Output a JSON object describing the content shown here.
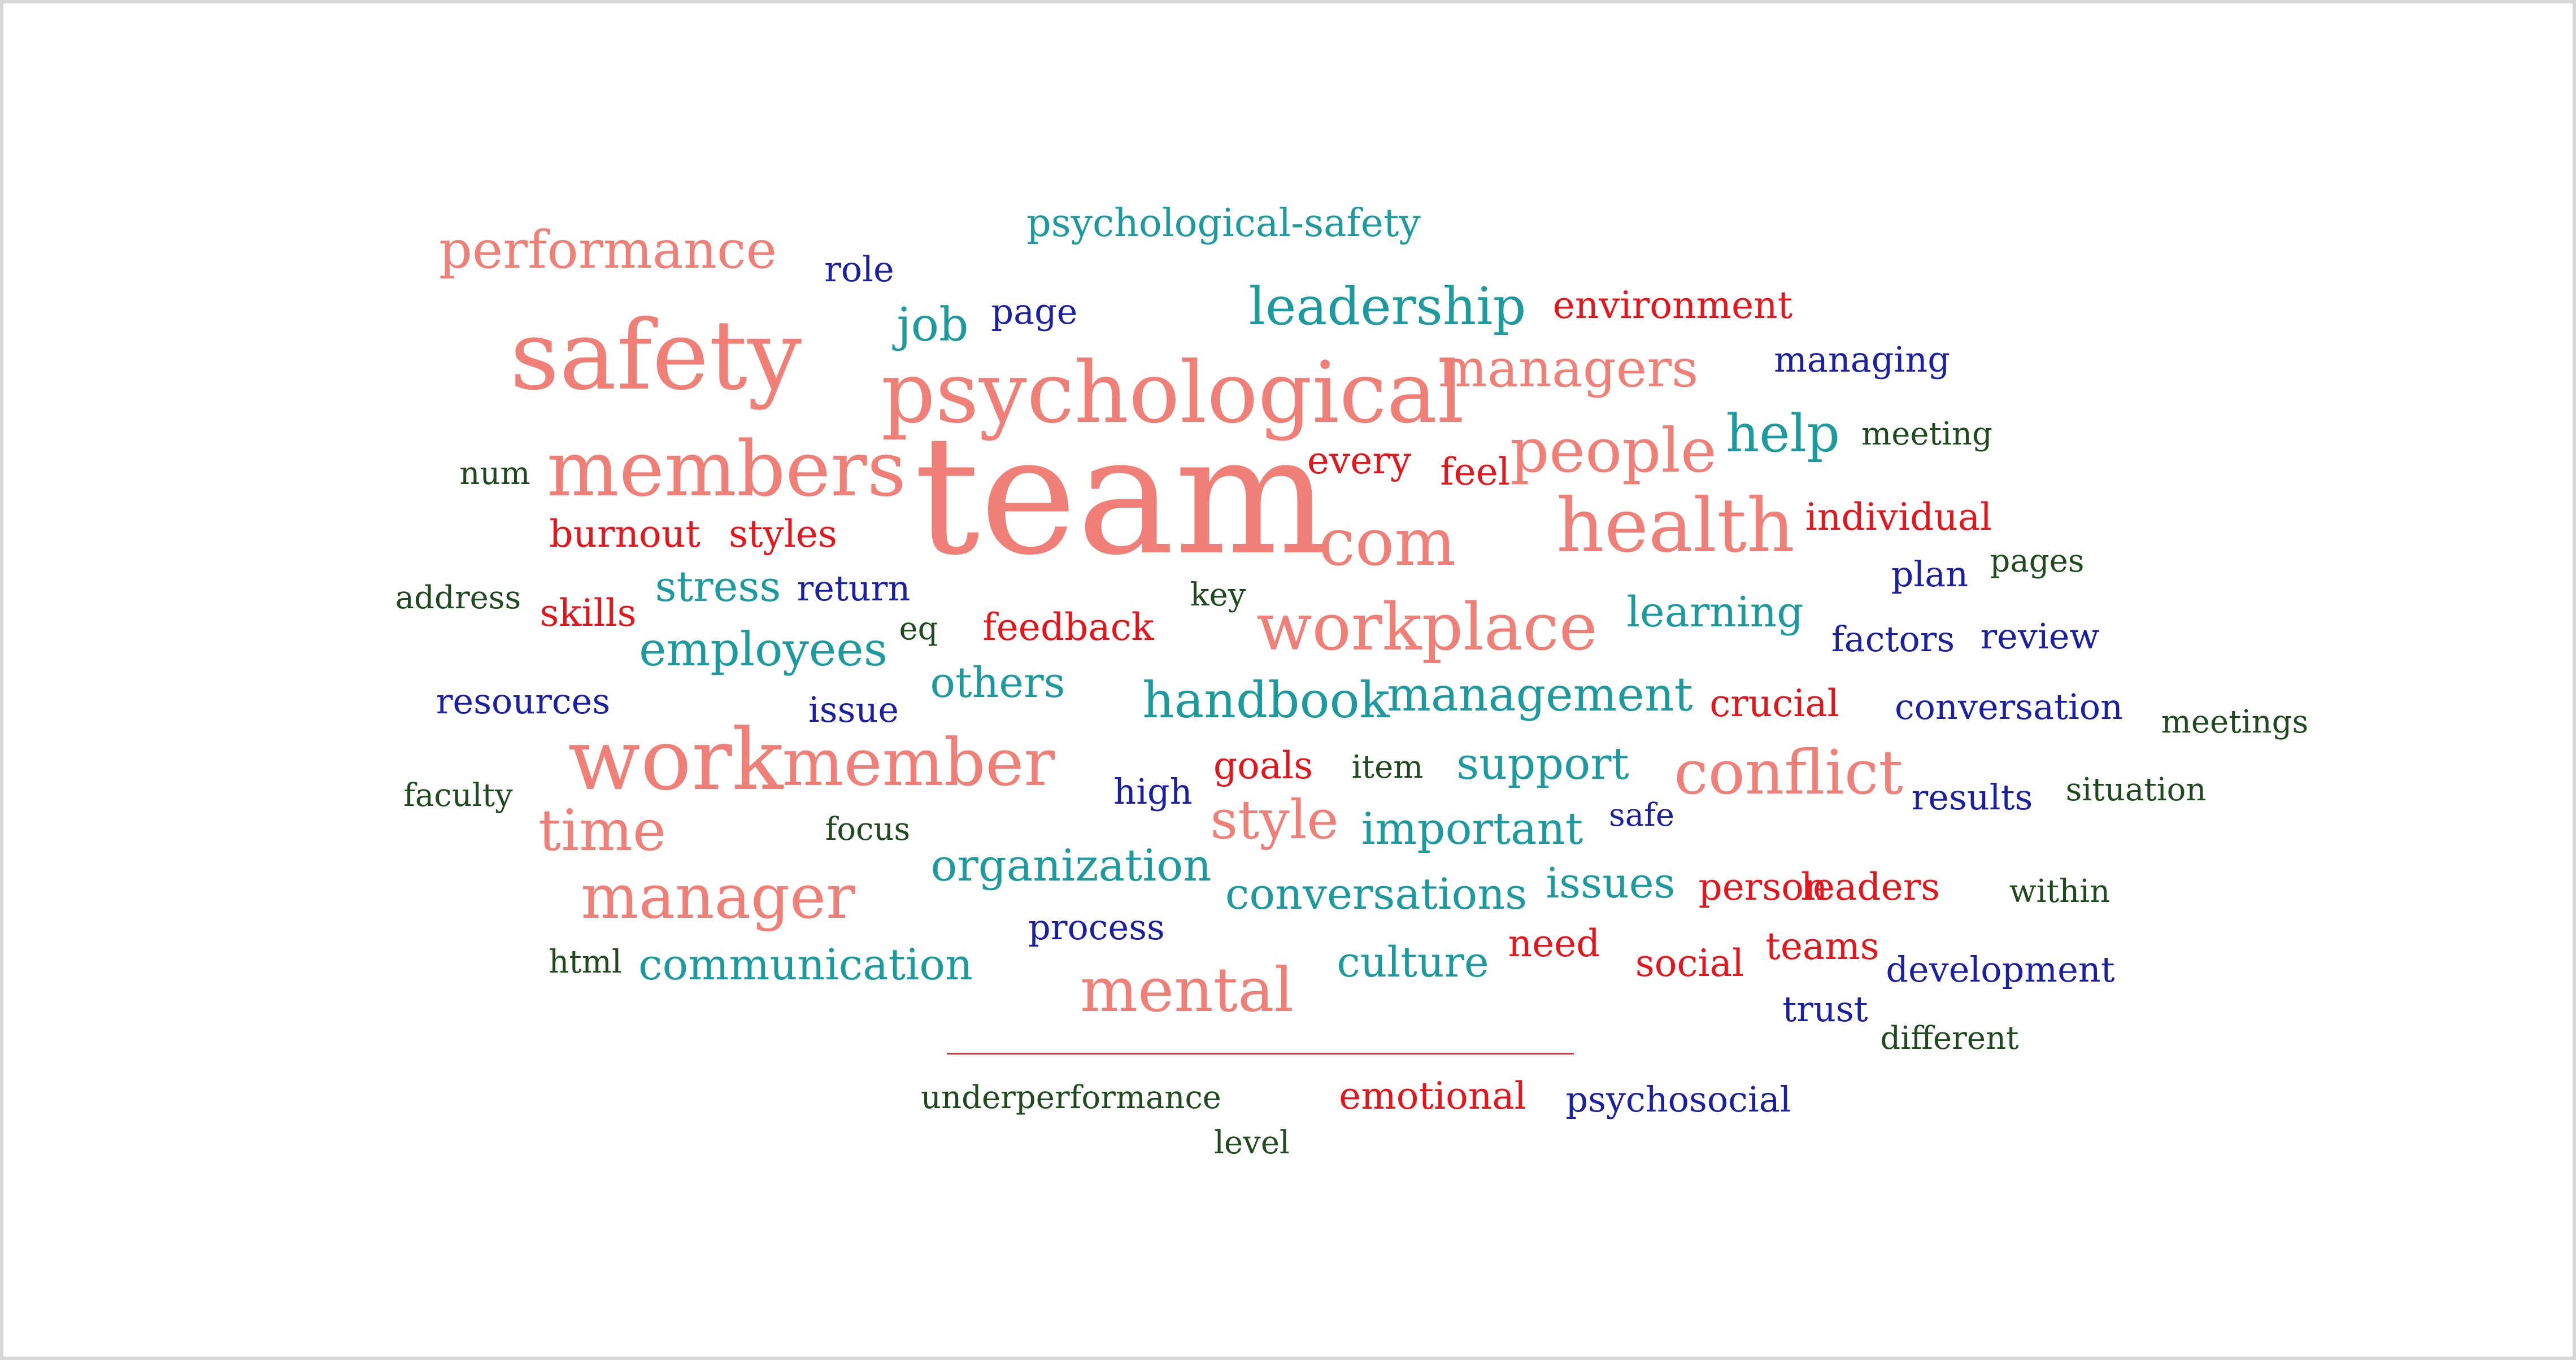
{
  "palette": {
    "salmon": "#f08077",
    "red": "#e8141c",
    "teal": "#1b9aa0",
    "navy": "#1a1fa5",
    "darkgreen": "#1e4a1e"
  },
  "words": [
    {
      "text": "team",
      "color": "salmon",
      "weight": 100
    },
    {
      "text": "psychological",
      "color": "salmon",
      "weight": 70
    },
    {
      "text": "safety",
      "color": "salmon",
      "weight": 70
    },
    {
      "text": "members",
      "color": "salmon",
      "weight": 60
    },
    {
      "text": "health",
      "color": "salmon",
      "weight": 56
    },
    {
      "text": "workplace",
      "color": "salmon",
      "weight": 52
    },
    {
      "text": "work",
      "color": "salmon",
      "weight": 60
    },
    {
      "text": "member",
      "color": "salmon",
      "weight": 48
    },
    {
      "text": "com",
      "color": "salmon",
      "weight": 48
    },
    {
      "text": "people",
      "color": "salmon",
      "weight": 44
    },
    {
      "text": "conflict",
      "color": "salmon",
      "weight": 44
    },
    {
      "text": "manager",
      "color": "salmon",
      "weight": 44
    },
    {
      "text": "mental",
      "color": "salmon",
      "weight": 44
    },
    {
      "text": "time",
      "color": "salmon",
      "weight": 40
    },
    {
      "text": "style",
      "color": "salmon",
      "weight": 38
    },
    {
      "text": "performance",
      "color": "salmon",
      "weight": 36
    },
    {
      "text": "managers",
      "color": "salmon",
      "weight": 36
    },
    {
      "text": "leadership",
      "color": "teal",
      "weight": 36
    },
    {
      "text": "help",
      "color": "teal",
      "weight": 36
    },
    {
      "text": "handbook",
      "color": "teal",
      "weight": 34
    },
    {
      "text": "management",
      "color": "teal",
      "weight": 32
    },
    {
      "text": "employees",
      "color": "teal",
      "weight": 32
    },
    {
      "text": "job",
      "color": "teal",
      "weight": 32
    },
    {
      "text": "organization",
      "color": "teal",
      "weight": 30
    },
    {
      "text": "support",
      "color": "teal",
      "weight": 30
    },
    {
      "text": "important",
      "color": "teal",
      "weight": 30
    },
    {
      "text": "conversations",
      "color": "teal",
      "weight": 30
    },
    {
      "text": "communication",
      "color": "teal",
      "weight": 30
    },
    {
      "text": "culture",
      "color": "teal",
      "weight": 28
    },
    {
      "text": "learning",
      "color": "teal",
      "weight": 28
    },
    {
      "text": "others",
      "color": "teal",
      "weight": 28
    },
    {
      "text": "stress",
      "color": "teal",
      "weight": 28
    },
    {
      "text": "issues",
      "color": "teal",
      "weight": 28
    },
    {
      "text": "psychological-safety",
      "color": "teal",
      "weight": 26
    },
    {
      "text": "environment",
      "color": "red",
      "weight": 24
    },
    {
      "text": "every",
      "color": "red",
      "weight": 24
    },
    {
      "text": "feel",
      "color": "red",
      "weight": 24
    },
    {
      "text": "individual",
      "color": "red",
      "weight": 24
    },
    {
      "text": "burnout",
      "color": "red",
      "weight": 24
    },
    {
      "text": "styles",
      "color": "red",
      "weight": 24
    },
    {
      "text": "skills",
      "color": "red",
      "weight": 24
    },
    {
      "text": "feedback",
      "color": "red",
      "weight": 24
    },
    {
      "text": "crucial",
      "color": "red",
      "weight": 24
    },
    {
      "text": "goals",
      "color": "red",
      "weight": 24
    },
    {
      "text": "person",
      "color": "red",
      "weight": 24
    },
    {
      "text": "leaders",
      "color": "red",
      "weight": 24
    },
    {
      "text": "need",
      "color": "red",
      "weight": 24
    },
    {
      "text": "social",
      "color": "red",
      "weight": 24
    },
    {
      "text": "teams",
      "color": "red",
      "weight": 24
    },
    {
      "text": "emotional",
      "color": "red",
      "weight": 24
    },
    {
      "text": "_____________________________________",
      "color": "red",
      "weight": 24
    },
    {
      "text": "role",
      "color": "navy",
      "weight": 22
    },
    {
      "text": "page",
      "color": "navy",
      "weight": 22
    },
    {
      "text": "managing",
      "color": "navy",
      "weight": 22
    },
    {
      "text": "return",
      "color": "navy",
      "weight": 22
    },
    {
      "text": "plan",
      "color": "navy",
      "weight": 22
    },
    {
      "text": "factors",
      "color": "navy",
      "weight": 22
    },
    {
      "text": "review",
      "color": "navy",
      "weight": 22
    },
    {
      "text": "resources",
      "color": "navy",
      "weight": 22
    },
    {
      "text": "issue",
      "color": "navy",
      "weight": 22
    },
    {
      "text": "conversation",
      "color": "navy",
      "weight": 22
    },
    {
      "text": "high",
      "color": "navy",
      "weight": 22
    },
    {
      "text": "results",
      "color": "navy",
      "weight": 22
    },
    {
      "text": "safe",
      "color": "navy",
      "weight": 20
    },
    {
      "text": "process",
      "color": "navy",
      "weight": 22
    },
    {
      "text": "development",
      "color": "navy",
      "weight": 22
    },
    {
      "text": "trust",
      "color": "navy",
      "weight": 22
    },
    {
      "text": "psychosocial",
      "color": "navy",
      "weight": 22
    },
    {
      "text": "num",
      "color": "darkgreen",
      "weight": 20
    },
    {
      "text": "meeting",
      "color": "darkgreen",
      "weight": 20
    },
    {
      "text": "address",
      "color": "darkgreen",
      "weight": 20
    },
    {
      "text": "key",
      "color": "darkgreen",
      "weight": 20
    },
    {
      "text": "eq",
      "color": "darkgreen",
      "weight": 20
    },
    {
      "text": "pages",
      "color": "darkgreen",
      "weight": 20
    },
    {
      "text": "meetings",
      "color": "darkgreen",
      "weight": 20
    },
    {
      "text": "faculty",
      "color": "darkgreen",
      "weight": 20
    },
    {
      "text": "item",
      "color": "darkgreen",
      "weight": 20
    },
    {
      "text": "focus",
      "color": "darkgreen",
      "weight": 20
    },
    {
      "text": "situation",
      "color": "darkgreen",
      "weight": 20
    },
    {
      "text": "within",
      "color": "darkgreen",
      "weight": 20
    },
    {
      "text": "html",
      "color": "darkgreen",
      "weight": 20
    },
    {
      "text": "different",
      "color": "darkgreen",
      "weight": 20
    },
    {
      "text": "underperformance",
      "color": "darkgreen",
      "weight": 20
    },
    {
      "text": "level",
      "color": "darkgreen",
      "weight": 20
    }
  ]
}
